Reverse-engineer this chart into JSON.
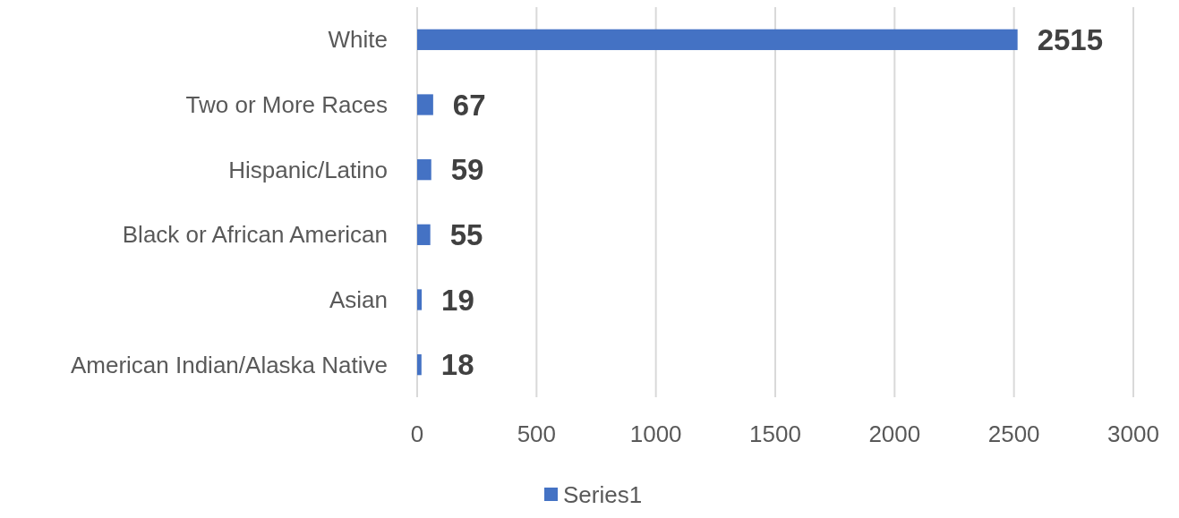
{
  "chart_data": {
    "type": "bar",
    "orientation": "horizontal",
    "categories": [
      "White",
      "Two or More Races",
      "Hispanic/Latino",
      "Black or African American",
      "Asian",
      "American Indian/Alaska Native"
    ],
    "series": [
      {
        "name": "Series1",
        "color": "#4472c4",
        "values": [
          2515,
          67,
          59,
          55,
          19,
          18
        ]
      }
    ],
    "xlim": [
      0,
      3000
    ],
    "xticks": [
      0,
      500,
      1000,
      1500,
      2000,
      2500,
      3000
    ],
    "grid": "x",
    "legend": "bottom",
    "data_labels": true
  }
}
